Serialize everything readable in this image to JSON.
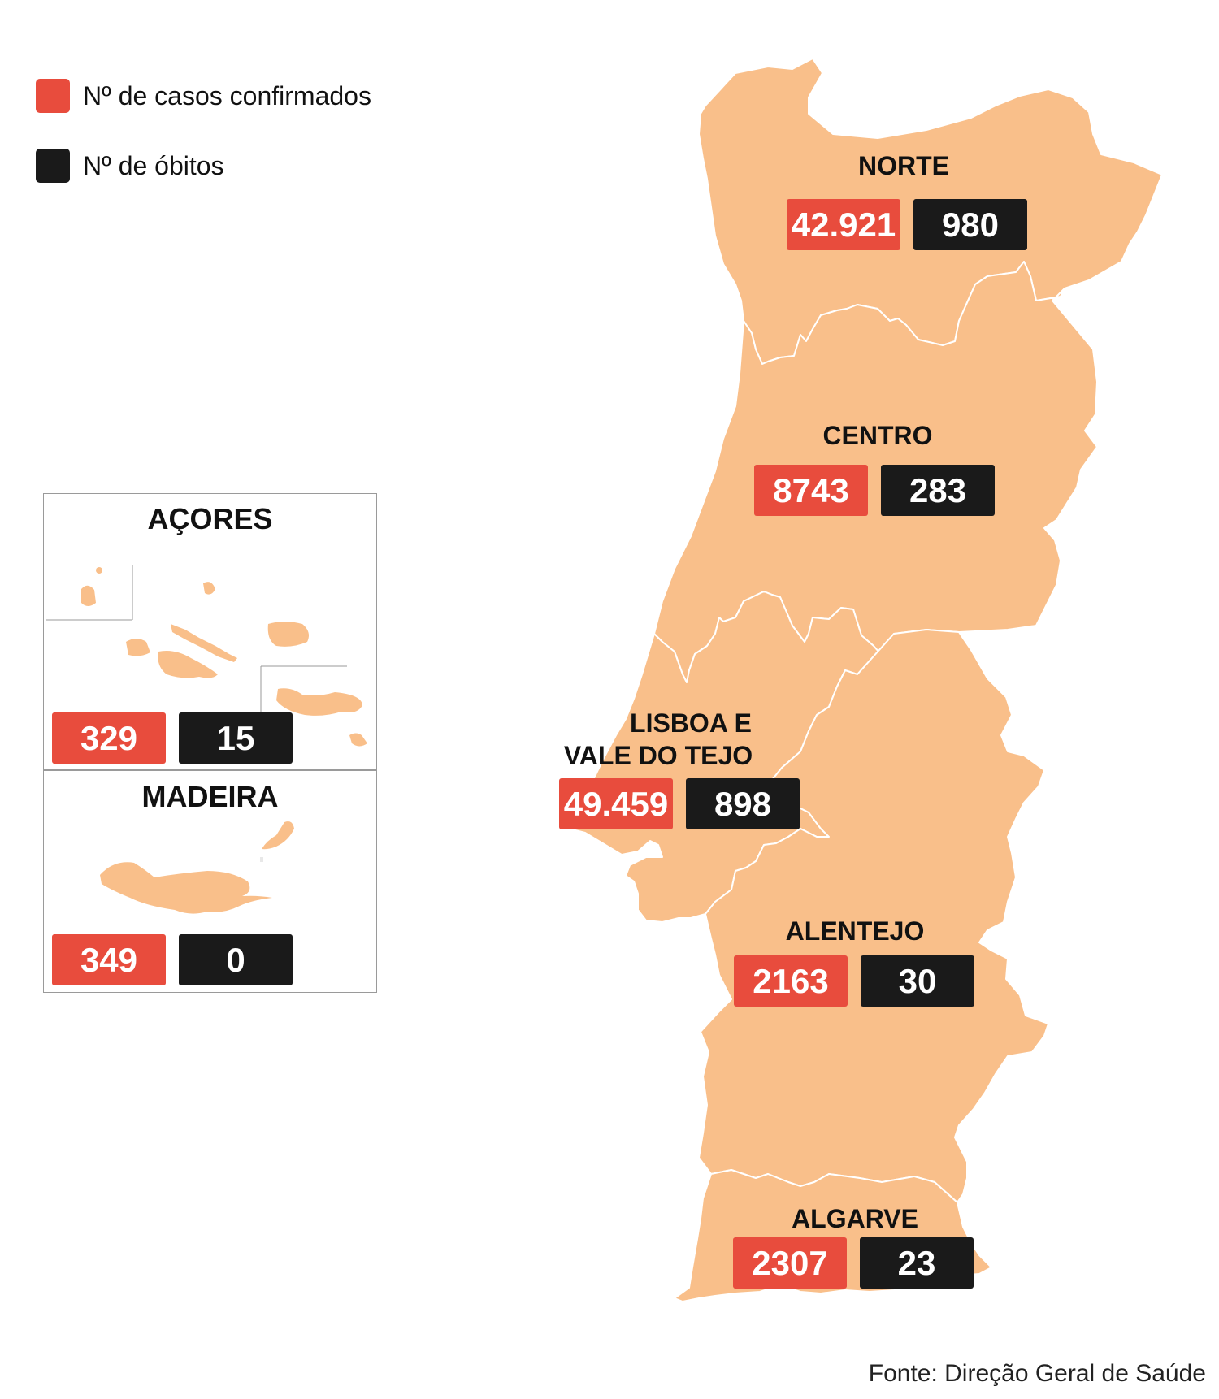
{
  "legend": [
    {
      "label": "Nº de casos confirmados",
      "color": "#e84c3d"
    },
    {
      "label": "Nº de óbitos",
      "color": "#1a1a1a"
    }
  ],
  "colors": {
    "land": "#f9bf8a",
    "border": "#ffffff",
    "cases": "#e84c3d",
    "deaths": "#1a1a1a"
  },
  "regions": {
    "norte": {
      "name": "NORTE",
      "cases": "42.921",
      "deaths": "980"
    },
    "centro": {
      "name": "CENTRO",
      "cases": "8743",
      "deaths": "283"
    },
    "lisboa": {
      "name_line1": "LISBOA E",
      "name_line2": "VALE DO TEJO",
      "cases": "49.459",
      "deaths": "898"
    },
    "alentejo": {
      "name": "ALENTEJO",
      "cases": "2163",
      "deaths": "30"
    },
    "algarve": {
      "name": "ALGARVE",
      "cases": "2307",
      "deaths": "23"
    }
  },
  "insets": {
    "acores": {
      "name": "AÇORES",
      "cases": "329",
      "deaths": "15"
    },
    "madeira": {
      "name": "MADEIRA",
      "cases": "349",
      "deaths": "0"
    }
  },
  "source": "Fonte: Direção Geral de Saúde"
}
